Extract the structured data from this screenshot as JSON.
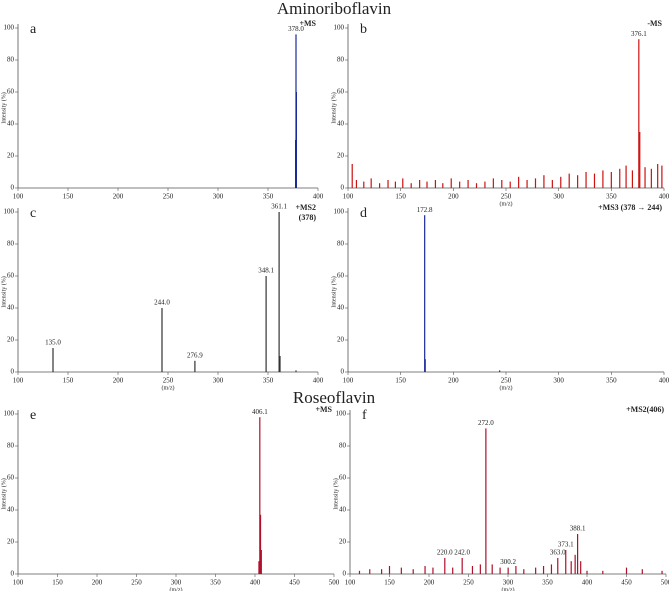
{
  "headings": [
    "Aminoriboflavin",
    "Roseoflavin"
  ],
  "chart_data": [
    {
      "type": "bar",
      "panel": "a",
      "mode": [
        "+MS"
      ],
      "mode_color": "#1a2a9a",
      "ylabel": "Intensity (%)",
      "color": "#1a2a9a",
      "x": [
        377.6,
        378.0,
        378.4
      ],
      "values": [
        30,
        96,
        60
      ],
      "peak_labels": [
        null,
        "378.0",
        null
      ],
      "xlim": [
        100,
        400
      ],
      "xticks": [
        100,
        150,
        200,
        250,
        300,
        350,
        400
      ],
      "ylim": [
        0,
        100
      ],
      "yticks": [
        0,
        20,
        40,
        60,
        80,
        100
      ]
    },
    {
      "type": "bar",
      "panel": "b",
      "mode": [
        "-MS"
      ],
      "mode_color": "#1a2a9a",
      "xlabel": "(m/z)",
      "ylabel": "Intensity (%)",
      "color": "#cc1111",
      "x": [
        104,
        108,
        115,
        122,
        130,
        138,
        145,
        152,
        160,
        168,
        175,
        183,
        190,
        198,
        206,
        214,
        222,
        230,
        238,
        246,
        254,
        262,
        270,
        278,
        286,
        294,
        302,
        310,
        318,
        326,
        334,
        342,
        350,
        358,
        364,
        370,
        376.1,
        377,
        382,
        388,
        394,
        398
      ],
      "values": [
        15,
        5,
        4,
        6,
        3,
        5,
        4,
        6,
        3,
        5,
        4,
        5,
        3,
        6,
        4,
        5,
        3,
        4,
        6,
        5,
        4,
        7,
        5,
        6,
        8,
        5,
        7,
        9,
        8,
        10,
        9,
        11,
        10,
        12,
        14,
        11,
        93,
        35,
        13,
        12,
        15,
        14
      ],
      "peak_labels": [
        null,
        null,
        null,
        null,
        null,
        null,
        null,
        null,
        null,
        null,
        null,
        null,
        null,
        null,
        null,
        null,
        null,
        null,
        null,
        null,
        null,
        null,
        null,
        null,
        null,
        null,
        null,
        null,
        null,
        null,
        null,
        null,
        null,
        null,
        null,
        null,
        "376.1",
        null,
        null,
        null,
        null,
        null
      ],
      "xlim": [
        100,
        400
      ],
      "xticks": [
        100,
        150,
        200,
        250,
        300,
        350,
        400
      ],
      "ylim": [
        0,
        100
      ],
      "yticks": [
        0,
        20,
        40,
        60,
        80,
        100
      ]
    },
    {
      "type": "bar",
      "panel": "c",
      "mode": [
        "+MS2",
        "(378)"
      ],
      "mode_color": "#1a2a9a",
      "xlabel": "(m/z)",
      "ylabel": "Intensity (%)",
      "color": "#333333",
      "x": [
        135.0,
        244.0,
        276.9,
        348.1,
        361.1,
        362.0,
        378.0
      ],
      "values": [
        15,
        40,
        7,
        60,
        100,
        10,
        1
      ],
      "peak_labels": [
        "135.0",
        "244.0",
        "276.9",
        "348.1",
        "361.1",
        null,
        null
      ],
      "xlim": [
        100,
        400
      ],
      "xticks": [
        100,
        150,
        200,
        250,
        300,
        350,
        400
      ],
      "ylim": [
        0,
        100
      ],
      "yticks": [
        0,
        20,
        40,
        60,
        80,
        100
      ]
    },
    {
      "type": "bar",
      "panel": "d",
      "mode": [
        "+MS3 (378 → 244)"
      ],
      "mode_color": "#1a2a9a",
      "xlabel": "(m/z)",
      "ylabel": "Intensity (%)",
      "color": "#1a2a9a",
      "x": [
        172.8,
        173.3,
        244.0
      ],
      "values": [
        98,
        8,
        1
      ],
      "peak_labels": [
        "172.8",
        null,
        null
      ],
      "xlim": [
        100,
        400
      ],
      "xticks": [
        100,
        150,
        200,
        250,
        300,
        350,
        400
      ],
      "ylim": [
        0,
        100
      ],
      "yticks": [
        0,
        20,
        40,
        60,
        80,
        100
      ]
    },
    {
      "type": "bar",
      "panel": "e",
      "mode": [
        "+MS"
      ],
      "mode_color": "#111111",
      "xlabel": "(m/z)",
      "ylabel": "Intensity (%)",
      "color": "#b0102a",
      "x": [
        405.0,
        406.1,
        407.0,
        408.0
      ],
      "values": [
        8,
        98,
        37,
        15
      ],
      "peak_labels": [
        null,
        "406.1",
        null,
        null
      ],
      "xlim": [
        100,
        500
      ],
      "xticks": [
        100,
        150,
        200,
        250,
        300,
        350,
        400,
        450,
        500
      ],
      "ylim": [
        0,
        100
      ],
      "yticks": [
        0,
        20,
        40,
        60,
        80,
        100
      ]
    },
    {
      "type": "bar",
      "panel": "f",
      "mode": [
        "+MS2(406)"
      ],
      "mode_color": "#111111",
      "xlabel": "(m/z)",
      "ylabel": "Intensity (%)",
      "color": "#b0102a",
      "x": [
        112,
        125,
        140,
        150,
        165,
        180,
        195,
        205,
        220.0,
        230,
        242.0,
        255,
        265,
        272.0,
        280,
        290,
        300.2,
        310,
        320,
        335,
        345,
        355,
        363.0,
        373.1,
        380,
        385,
        388.1,
        392,
        400,
        420,
        450,
        470,
        495
      ],
      "values": [
        2,
        3,
        3,
        5,
        4,
        3,
        5,
        4,
        10,
        4,
        10,
        5,
        6,
        91,
        6,
        4,
        4,
        5,
        3,
        4,
        5,
        6,
        10,
        15,
        8,
        12,
        25,
        8,
        2,
        2,
        4,
        3,
        2
      ],
      "peak_labels": [
        null,
        null,
        null,
        null,
        null,
        null,
        null,
        null,
        "220.0",
        null,
        "242.0",
        null,
        null,
        "272.0",
        null,
        null,
        "300.2",
        null,
        null,
        null,
        null,
        null,
        "363.0",
        "373.1",
        null,
        null,
        "388.1",
        null,
        null,
        null,
        null,
        null,
        null
      ],
      "xlim": [
        100,
        500
      ],
      "xticks": [
        100,
        150,
        200,
        250,
        300,
        350,
        400,
        450,
        500
      ],
      "ylim": [
        0,
        100
      ],
      "yticks": [
        0,
        20,
        40,
        60,
        80,
        100
      ]
    }
  ]
}
